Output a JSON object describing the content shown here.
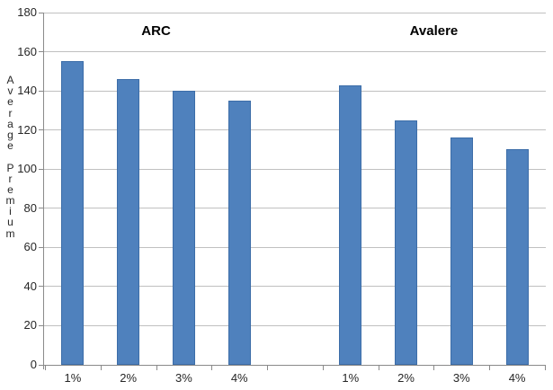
{
  "chart_data": {
    "type": "bar",
    "title": "",
    "ylabel": "Average Premium",
    "xlabel": "",
    "grid": true,
    "legend": "none",
    "y_axis": {
      "min": 0,
      "max": 180,
      "step": 20
    },
    "y_ticks": [
      0,
      20,
      40,
      60,
      80,
      100,
      120,
      140,
      160,
      180
    ],
    "group_gap_slots": 1,
    "groups": [
      {
        "label": "ARC",
        "categories": [
          "1%",
          "2%",
          "3%",
          "4%"
        ],
        "values": [
          155,
          146,
          140,
          135
        ]
      },
      {
        "label": "Avalere",
        "categories": [
          "1%",
          "2%",
          "3%",
          "4%"
        ],
        "values": [
          143,
          125,
          116,
          110
        ]
      }
    ],
    "colors": {
      "bar_fill": "#4F81BD",
      "bar_border": "#3C6DA8",
      "gridline": "#C0C0C0",
      "axis": "#8A8A8A",
      "tick_text": "#262626",
      "group_label_text": "#000000",
      "background": "#FFFFFF"
    }
  }
}
